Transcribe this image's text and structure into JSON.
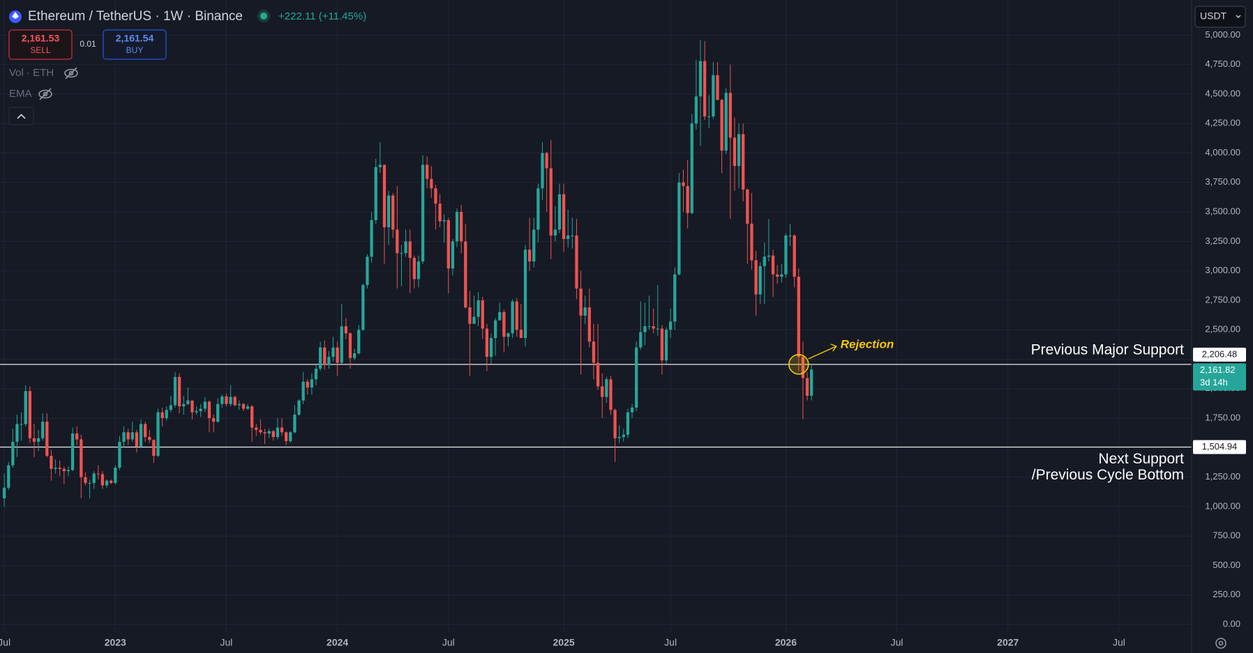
{
  "header": {
    "symbol": "Ethereum / TetherUS · 1W · Binance",
    "change": "+222.11 (+11.45%)",
    "sell": {
      "price": "2,161.53",
      "label": "SELL"
    },
    "quantity": "0.01",
    "buy": {
      "price": "2,161.54",
      "label": "BUY"
    },
    "indicators": [
      "Vol · ETH",
      "EMA"
    ],
    "currency": "USDT"
  },
  "chart_data": {
    "type": "candlestick",
    "up_color": "#26a69a",
    "down_color": "#ef5350",
    "grid": true,
    "xlim": [
      -1,
      278
    ],
    "xticks": [
      {
        "value": 0,
        "label": "Jul"
      },
      {
        "value": 26,
        "label": "2023"
      },
      {
        "value": 52,
        "label": "Jul"
      },
      {
        "value": 78,
        "label": "2024"
      },
      {
        "value": 104,
        "label": "Jul"
      },
      {
        "value": 131,
        "label": "2025"
      },
      {
        "value": 156,
        "label": "Jul"
      },
      {
        "value": 183,
        "label": "2026"
      },
      {
        "value": 209,
        "label": "Jul"
      },
      {
        "value": 235,
        "label": "2027"
      },
      {
        "value": 261,
        "label": "Jul"
      }
    ],
    "ylim": [
      -65,
      5298
    ],
    "yticks": [
      {
        "value": 0,
        "label": "0.00"
      },
      {
        "value": 250,
        "label": "250.00"
      },
      {
        "value": 500,
        "label": "500.00"
      },
      {
        "value": 750,
        "label": "750.00"
      },
      {
        "value": 1000,
        "label": "1,000.00"
      },
      {
        "value": 1250,
        "label": "1,250.00"
      },
      {
        "value": 1500,
        "label": "1,500.00"
      },
      {
        "value": 1750,
        "label": "1,750.00"
      },
      {
        "value": 2000,
        "label": "2,000.00"
      },
      {
        "value": 2250,
        "label": "2,250.00"
      },
      {
        "value": 2500,
        "label": "2,500.00"
      },
      {
        "value": 2750,
        "label": "2,750.00"
      },
      {
        "value": 3000,
        "label": "3,000.00"
      },
      {
        "value": 3250,
        "label": "3,250.00"
      },
      {
        "value": 3500,
        "label": "3,500.00"
      },
      {
        "value": 3750,
        "label": "3,750.00"
      },
      {
        "value": 4000,
        "label": "4,000.00"
      },
      {
        "value": 4250,
        "label": "4,250.00"
      },
      {
        "value": 4500,
        "label": "4,500.00"
      },
      {
        "value": 4750,
        "label": "4,750.00"
      },
      {
        "value": 5000,
        "label": "5,000.00"
      }
    ],
    "hlines": [
      {
        "value": 2206.48,
        "value_label": "2,206.48",
        "label": [
          "Previous Major Support"
        ]
      },
      {
        "value": 1504.94,
        "value_label": "1,504.94",
        "label": [
          "Next Support",
          "/Previous Cycle Bottom"
        ]
      }
    ],
    "last_price": {
      "value": 2161.82,
      "value_label": "2,161.82",
      "countdown": "3d 14h"
    },
    "annotations": [
      {
        "text": "Rejection",
        "candle": 186,
        "value": 2206.48
      }
    ],
    "ohlc": [
      [
        1070,
        1280,
        1000,
        1160
      ],
      [
        1160,
        1380,
        1140,
        1350
      ],
      [
        1350,
        1660,
        1330,
        1550
      ],
      [
        1550,
        1780,
        1420,
        1700
      ],
      [
        1700,
        1800,
        1560,
        1700
      ],
      [
        1700,
        2030,
        1680,
        1980
      ],
      [
        1980,
        2020,
        1540,
        1580
      ],
      [
        1580,
        1700,
        1420,
        1550
      ],
      [
        1550,
        1650,
        1470,
        1580
      ],
      [
        1580,
        1790,
        1560,
        1720
      ],
      [
        1720,
        1790,
        1420,
        1430
      ],
      [
        1430,
        1480,
        1220,
        1320
      ],
      [
        1320,
        1400,
        1280,
        1330
      ],
      [
        1330,
        1390,
        1260,
        1320
      ],
      [
        1320,
        1340,
        1190,
        1300
      ],
      [
        1300,
        1340,
        1260,
        1310
      ],
      [
        1310,
        1670,
        1300,
        1620
      ],
      [
        1620,
        1680,
        1520,
        1570
      ],
      [
        1570,
        1610,
        1070,
        1250
      ],
      [
        1250,
        1290,
        1180,
        1200
      ],
      [
        1200,
        1230,
        1070,
        1200
      ],
      [
        1200,
        1300,
        1150,
        1280
      ],
      [
        1280,
        1350,
        1230,
        1275
      ],
      [
        1275,
        1300,
        1150,
        1180
      ],
      [
        1180,
        1230,
        1160,
        1220
      ],
      [
        1220,
        1230,
        1190,
        1200
      ],
      [
        1200,
        1350,
        1190,
        1330
      ],
      [
        1330,
        1600,
        1310,
        1550
      ],
      [
        1550,
        1680,
        1500,
        1630
      ],
      [
        1630,
        1660,
        1520,
        1570
      ],
      [
        1570,
        1720,
        1550,
        1630
      ],
      [
        1630,
        1650,
        1460,
        1510
      ],
      [
        1510,
        1740,
        1500,
        1700
      ],
      [
        1700,
        1720,
        1550,
        1590
      ],
      [
        1590,
        1650,
        1540,
        1565
      ],
      [
        1565,
        1570,
        1370,
        1430
      ],
      [
        1430,
        1830,
        1420,
        1800
      ],
      [
        1800,
        1840,
        1680,
        1750
      ],
      [
        1750,
        1850,
        1730,
        1820
      ],
      [
        1820,
        1940,
        1800,
        1860
      ],
      [
        1860,
        2140,
        1840,
        2100
      ],
      [
        2100,
        2130,
        1790,
        1850
      ],
      [
        1850,
        1940,
        1780,
        1870
      ],
      [
        1870,
        2010,
        1860,
        1900
      ],
      [
        1900,
        1900,
        1740,
        1800
      ],
      [
        1800,
        1850,
        1780,
        1810
      ],
      [
        1810,
        1870,
        1760,
        1830
      ],
      [
        1830,
        1930,
        1800,
        1890
      ],
      [
        1890,
        1900,
        1630,
        1750
      ],
      [
        1750,
        1780,
        1630,
        1720
      ],
      [
        1720,
        1920,
        1710,
        1870
      ],
      [
        1870,
        1950,
        1840,
        1935
      ],
      [
        1935,
        1960,
        1850,
        1870
      ],
      [
        1870,
        2030,
        1850,
        1930
      ],
      [
        1930,
        1940,
        1850,
        1860
      ],
      [
        1860,
        1900,
        1820,
        1870
      ],
      [
        1870,
        1880,
        1810,
        1830
      ],
      [
        1830,
        1870,
        1820,
        1850
      ],
      [
        1850,
        1860,
        1550,
        1670
      ],
      [
        1670,
        1700,
        1600,
        1650
      ],
      [
        1650,
        1740,
        1610,
        1630
      ],
      [
        1630,
        1660,
        1530,
        1620
      ],
      [
        1620,
        1660,
        1580,
        1640
      ],
      [
        1640,
        1650,
        1560,
        1590
      ],
      [
        1590,
        1750,
        1570,
        1670
      ],
      [
        1670,
        1750,
        1600,
        1630
      ],
      [
        1630,
        1640,
        1520,
        1555
      ],
      [
        1555,
        1640,
        1540,
        1630
      ],
      [
        1630,
        1860,
        1620,
        1780
      ],
      [
        1780,
        1910,
        1770,
        1900
      ],
      [
        1900,
        2140,
        1870,
        2060
      ],
      [
        2060,
        2080,
        1950,
        2010
      ],
      [
        2010,
        2130,
        1950,
        2080
      ],
      [
        2080,
        2200,
        2030,
        2170
      ],
      [
        2170,
        2400,
        2150,
        2350
      ],
      [
        2350,
        2410,
        2160,
        2200
      ],
      [
        2200,
        2320,
        2170,
        2270
      ],
      [
        2270,
        2440,
        2230,
        2350
      ],
      [
        2350,
        2400,
        2110,
        2220
      ],
      [
        2220,
        2720,
        2210,
        2530
      ],
      [
        2530,
        2600,
        2420,
        2470
      ],
      [
        2470,
        2480,
        2170,
        2260
      ],
      [
        2260,
        2340,
        2240,
        2300
      ],
      [
        2300,
        2540,
        2290,
        2500
      ],
      [
        2500,
        2890,
        2490,
        2880
      ],
      [
        2880,
        3140,
        2850,
        3120
      ],
      [
        3120,
        3500,
        3070,
        3430
      ],
      [
        3430,
        3950,
        3400,
        3880
      ],
      [
        3880,
        4090,
        3830,
        3900
      ],
      [
        3900,
        3900,
        3060,
        3370
      ],
      [
        3370,
        3680,
        3220,
        3640
      ],
      [
        3640,
        3660,
        3280,
        3350
      ],
      [
        3350,
        3720,
        2850,
        3150
      ],
      [
        3150,
        3220,
        2870,
        3150
      ],
      [
        3150,
        3350,
        3120,
        3250
      ],
      [
        3250,
        3350,
        2810,
        3110
      ],
      [
        3110,
        3130,
        2850,
        2930
      ],
      [
        2930,
        3130,
        2860,
        3080
      ],
      [
        3080,
        3980,
        3060,
        3900
      ],
      [
        3900,
        3970,
        3700,
        3780
      ],
      [
        3780,
        3890,
        3620,
        3700
      ],
      [
        3700,
        3730,
        3350,
        3570
      ],
      [
        3570,
        3650,
        3370,
        3420
      ],
      [
        3420,
        3480,
        3240,
        3430
      ],
      [
        3430,
        3450,
        2810,
        3020
      ],
      [
        3020,
        3270,
        2960,
        3250
      ],
      [
        3250,
        3530,
        3200,
        3500
      ],
      [
        3500,
        3560,
        3150,
        3250
      ],
      [
        3250,
        3400,
        2680,
        2690
      ],
      [
        2690,
        2830,
        2110,
        2550
      ],
      [
        2550,
        2790,
        2550,
        2610
      ],
      [
        2610,
        2820,
        2530,
        2750
      ],
      [
        2750,
        2780,
        2420,
        2510
      ],
      [
        2510,
        2550,
        2150,
        2270
      ],
      [
        2270,
        2470,
        2210,
        2430
      ],
      [
        2430,
        2600,
        2280,
        2580
      ],
      [
        2580,
        2730,
        2580,
        2650
      ],
      [
        2650,
        2670,
        2310,
        2440
      ],
      [
        2440,
        2480,
        2360,
        2470
      ],
      [
        2470,
        2760,
        2430,
        2740
      ],
      [
        2740,
        2770,
        2440,
        2500
      ],
      [
        2500,
        2720,
        2430,
        2430
      ],
      [
        2430,
        3220,
        2360,
        3180
      ],
      [
        3180,
        3450,
        3000,
        3080
      ],
      [
        3080,
        3450,
        3030,
        3350
      ],
      [
        3350,
        3740,
        3240,
        3700
      ],
      [
        3700,
        4090,
        3600,
        4000
      ],
      [
        4000,
        4010,
        3500,
        3870
      ],
      [
        3870,
        4110,
        3100,
        3300
      ],
      [
        3300,
        3550,
        3250,
        3350
      ],
      [
        3350,
        3740,
        3320,
        3650
      ],
      [
        3650,
        3740,
        3160,
        3270
      ],
      [
        3270,
        3520,
        3200,
        3300
      ],
      [
        3300,
        3450,
        3190,
        3300
      ],
      [
        3300,
        3440,
        2760,
        2850
      ],
      [
        2850,
        3000,
        2120,
        2620
      ],
      [
        2620,
        2790,
        2550,
        2690
      ],
      [
        2690,
        2850,
        2350,
        2400
      ],
      [
        2400,
        2550,
        2080,
        2220
      ],
      [
        2220,
        2550,
        1990,
        2020
      ],
      [
        2020,
        2130,
        1750,
        1930
      ],
      [
        1930,
        2100,
        1880,
        2080
      ],
      [
        2080,
        2110,
        1780,
        1820
      ],
      [
        1820,
        1830,
        1380,
        1580
      ],
      [
        1580,
        1690,
        1540,
        1590
      ],
      [
        1590,
        1660,
        1550,
        1610
      ],
      [
        1610,
        1830,
        1580,
        1800
      ],
      [
        1800,
        1870,
        1750,
        1840
      ],
      [
        1840,
        2400,
        1810,
        2350
      ],
      [
        2350,
        2740,
        2330,
        2480
      ],
      [
        2480,
        2730,
        2370,
        2530
      ],
      [
        2530,
        2790,
        2500,
        2530
      ],
      [
        2530,
        2680,
        2470,
        2510
      ],
      [
        2510,
        2880,
        2450,
        2510
      ],
      [
        2510,
        2540,
        2120,
        2240
      ],
      [
        2240,
        2520,
        2210,
        2500
      ],
      [
        2500,
        2680,
        2430,
        2570
      ],
      [
        2570,
        3030,
        2500,
        2970
      ],
      [
        2970,
        3830,
        2960,
        3750
      ],
      [
        3750,
        3860,
        3500,
        3720
      ],
      [
        3720,
        3940,
        3360,
        3490
      ],
      [
        3490,
        4330,
        3480,
        4250
      ],
      [
        4250,
        4790,
        4200,
        4480
      ],
      [
        4480,
        4960,
        4060,
        4780
      ],
      [
        4780,
        4950,
        4280,
        4310
      ],
      [
        4310,
        4490,
        4210,
        4310
      ],
      [
        4310,
        4770,
        4290,
        4660
      ],
      [
        4660,
        4770,
        4450,
        4450
      ],
      [
        4450,
        4460,
        3830,
        4020
      ],
      [
        4020,
        4550,
        3990,
        4510
      ],
      [
        4510,
        4750,
        3440,
        4130
      ],
      [
        4130,
        4300,
        3680,
        3890
      ],
      [
        3890,
        4250,
        3700,
        4160
      ],
      [
        4160,
        4250,
        3590,
        3690
      ],
      [
        3690,
        3700,
        3060,
        3400
      ],
      [
        3400,
        3660,
        3010,
        3090
      ],
      [
        3090,
        3170,
        2620,
        2800
      ],
      [
        2800,
        3070,
        2720,
        3040
      ],
      [
        3040,
        3240,
        2720,
        3120
      ],
      [
        3120,
        3440,
        3080,
        3130
      ],
      [
        3130,
        3180,
        2780,
        2970
      ],
      [
        2970,
        3050,
        2890,
        2950
      ],
      [
        2950,
        3060,
        2900,
        2970
      ],
      [
        2970,
        3320,
        2940,
        3300
      ],
      [
        3300,
        3400,
        3210,
        3300
      ],
      [
        3300,
        3310,
        2860,
        2950
      ],
      [
        2950,
        3020,
        2150,
        2270
      ],
      [
        2270,
        2400,
        1740,
        2090
      ],
      [
        2090,
        2140,
        1900,
        1940
      ],
      [
        1940,
        2200,
        1900,
        2161.82
      ]
    ]
  }
}
